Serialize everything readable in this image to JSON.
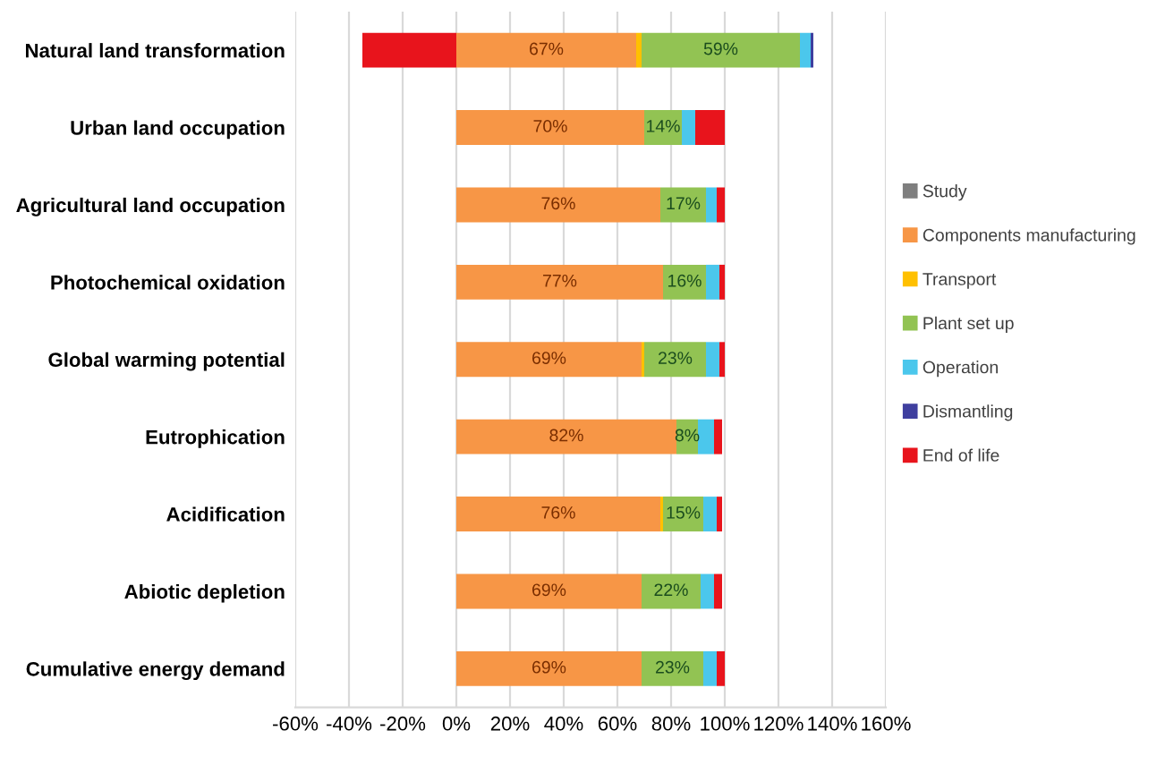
{
  "chart_data": {
    "type": "bar",
    "orientation": "horizontal",
    "stacked": true,
    "categories": [
      "Natural land transformation",
      "Urban land occupation",
      "Agricultural land occupation",
      "Photochemical oxidation",
      "Global warming potential",
      "Eutrophication",
      "Acidification",
      "Abiotic depletion",
      "Cumulative energy demand"
    ],
    "series": [
      {
        "name": "Study",
        "color": "#7f7f7f",
        "values": [
          0,
          0,
          0,
          0,
          0,
          0,
          0,
          0,
          0
        ]
      },
      {
        "name": "Components manufacturing",
        "color": "#f79646",
        "values": [
          67,
          70,
          76,
          77,
          69,
          82,
          76,
          69,
          69
        ],
        "value_labels": [
          "67%",
          "70%",
          "76%",
          "77%",
          "69%",
          "82%",
          "76%",
          "69%",
          "69%"
        ]
      },
      {
        "name": "Transport",
        "color": "#ffc000",
        "values": [
          2,
          0,
          0,
          0,
          1,
          0,
          1,
          0,
          0
        ]
      },
      {
        "name": "Plant set up",
        "color": "#92c353",
        "values": [
          59,
          14,
          17,
          16,
          23,
          8,
          15,
          22,
          23
        ],
        "value_labels": [
          "59%",
          "14%",
          "17%",
          "16%",
          "23%",
          "8%",
          "15%",
          "22%",
          "23%"
        ]
      },
      {
        "name": "Operation",
        "color": "#4bc7ec",
        "values": [
          4,
          5,
          4,
          5,
          5,
          6,
          5,
          5,
          5
        ]
      },
      {
        "name": "Dismantling",
        "color": "#3f3f9f",
        "values": [
          1,
          0,
          0,
          0,
          0,
          0,
          0,
          0,
          0
        ]
      },
      {
        "name": "End of life",
        "color": "#e8141c",
        "values": [
          -35,
          11,
          3,
          2,
          2,
          3,
          2,
          3,
          3
        ]
      }
    ],
    "xlim": [
      -60,
      160
    ],
    "xticks": [
      {
        "value": -60,
        "label": "-60%"
      },
      {
        "value": -40,
        "label": "-40%"
      },
      {
        "value": -20,
        "label": "-20%"
      },
      {
        "value": 0,
        "label": "0%"
      },
      {
        "value": 20,
        "label": "20%"
      },
      {
        "value": 40,
        "label": "40%"
      },
      {
        "value": 60,
        "label": "60%"
      },
      {
        "value": 80,
        "label": "80%"
      },
      {
        "value": 100,
        "label": "100%"
      },
      {
        "value": 120,
        "label": "120%"
      },
      {
        "value": 140,
        "label": "140%"
      },
      {
        "value": 160,
        "label": "160%"
      }
    ],
    "grid": "x",
    "legend": "right"
  }
}
